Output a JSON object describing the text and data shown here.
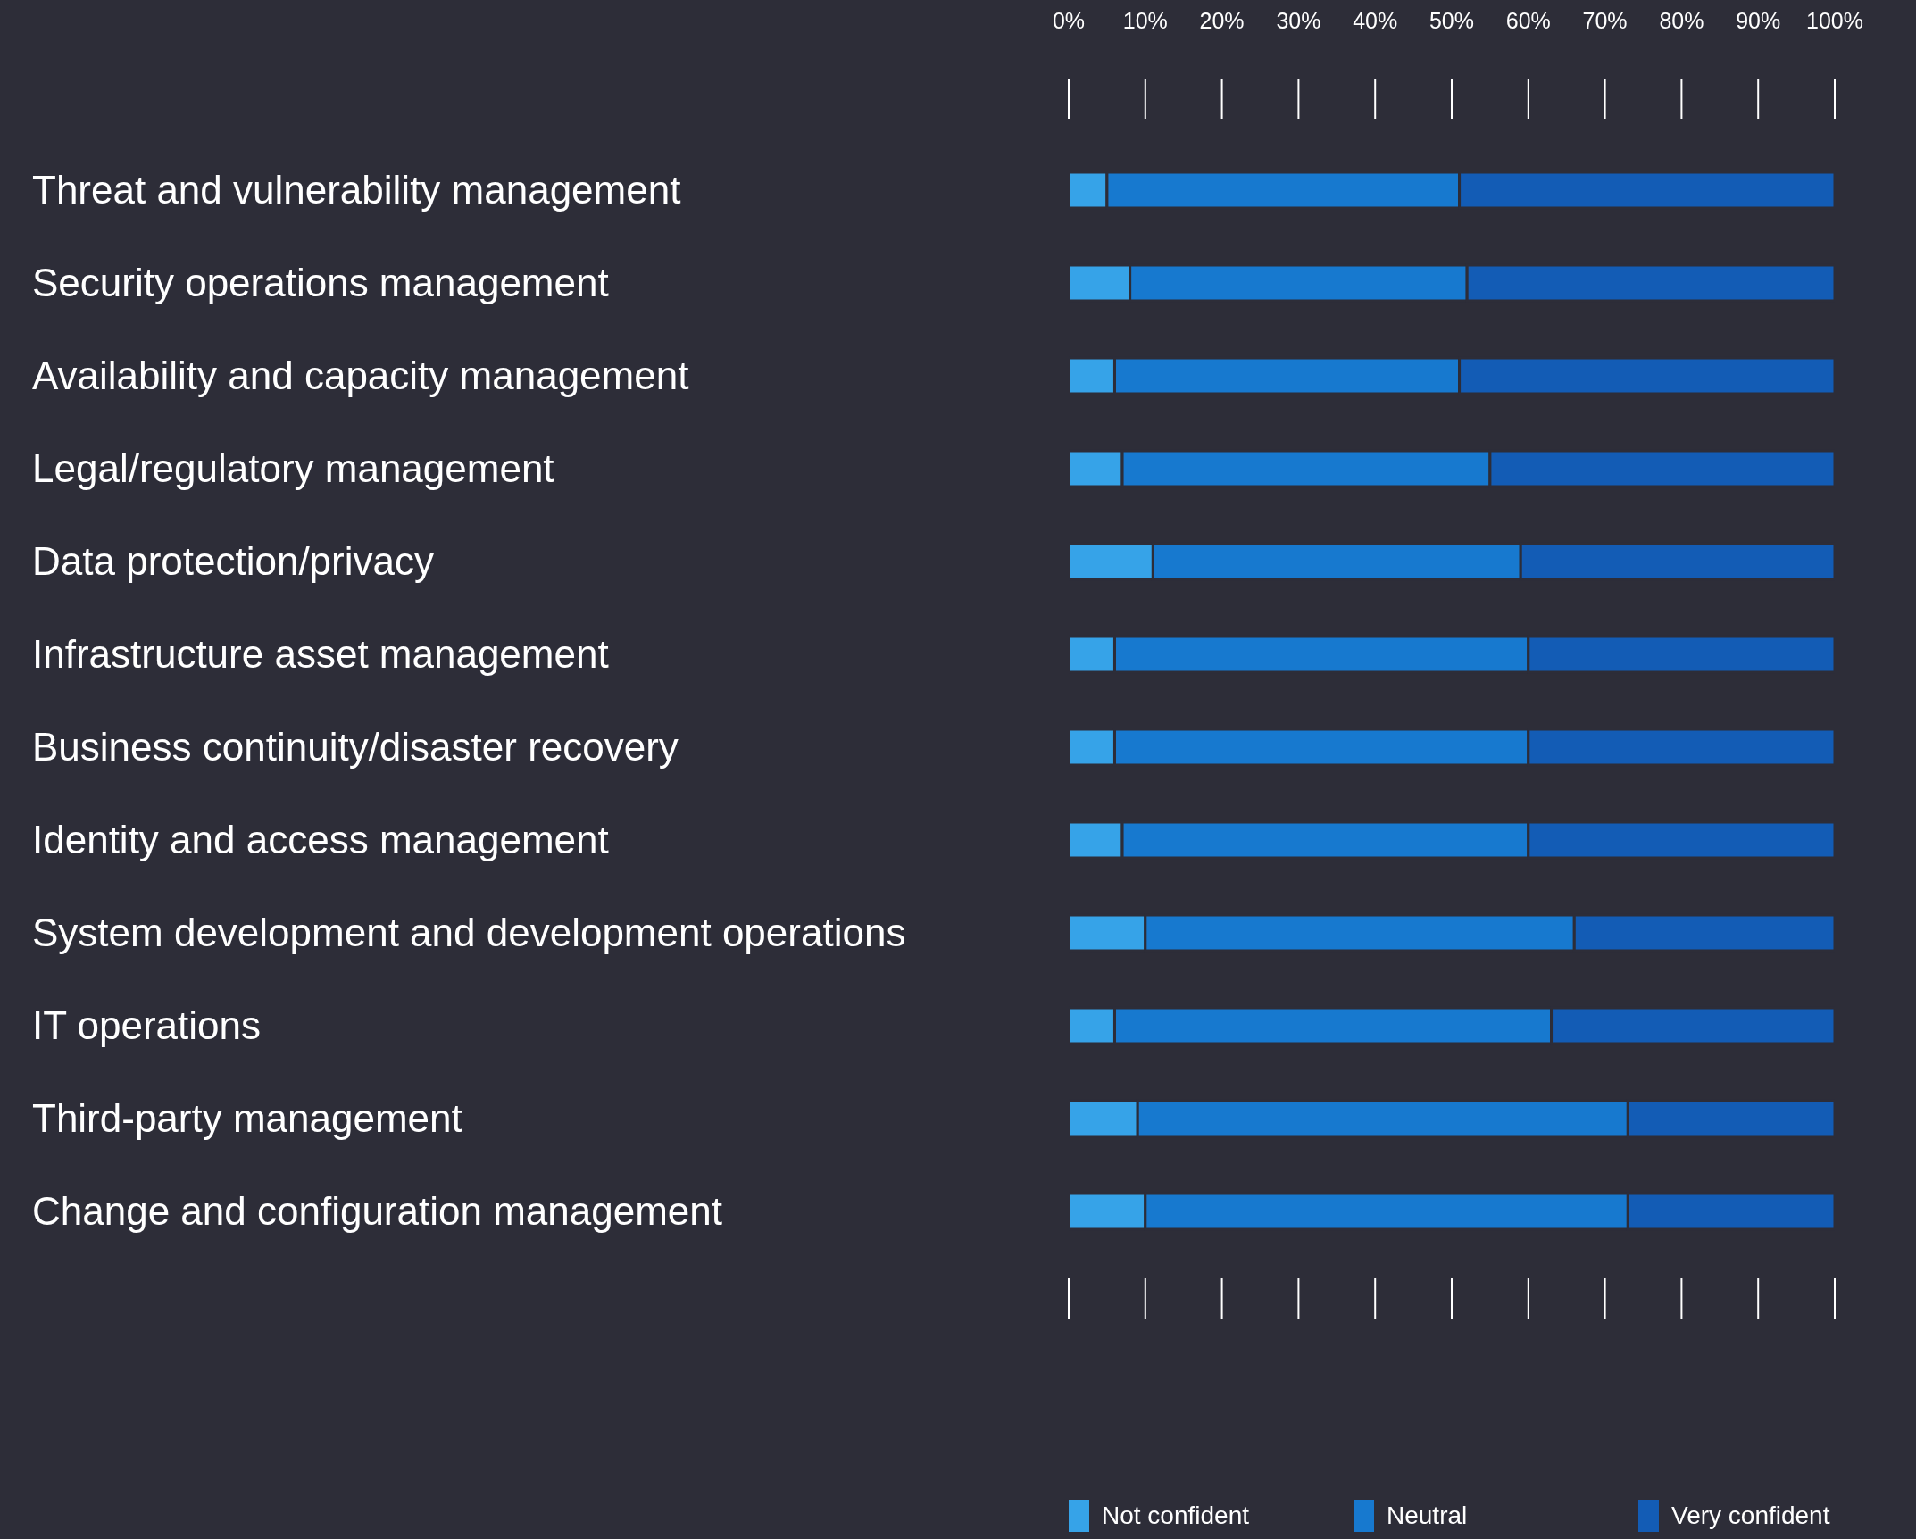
{
  "chart_data": {
    "type": "bar",
    "orientation": "horizontal",
    "stacked": true,
    "categories": [
      "Threat and vulnerability management",
      "Security operations management",
      "Availability and capacity management",
      "Legal/regulatory management",
      "Data protection/privacy",
      "Infrastructure asset management",
      "Business continuity/disaster recovery",
      "Identity and access management",
      "System development and development operations",
      "IT operations",
      "Third-party management",
      "Change and configuration management"
    ],
    "series": [
      {
        "name": "Not confident",
        "color": "#36a3e8",
        "values": [
          5,
          8,
          6,
          7,
          11,
          6,
          6,
          7,
          10,
          6,
          9,
          10
        ]
      },
      {
        "name": "Neutral",
        "color": "#1779cf",
        "values": [
          46,
          44,
          45,
          48,
          48,
          54,
          54,
          53,
          56,
          57,
          64,
          63
        ]
      },
      {
        "name": "Very confident",
        "color": "#135cb5",
        "values": [
          49,
          48,
          49,
          45,
          41,
          40,
          40,
          40,
          34,
          37,
          27,
          27
        ]
      }
    ],
    "xlim": [
      0,
      100
    ],
    "xticks": [
      {
        "value": 0,
        "label": "0%"
      },
      {
        "value": 10,
        "label": "10%"
      },
      {
        "value": 20,
        "label": "20%"
      },
      {
        "value": 30,
        "label": "30%"
      },
      {
        "value": 40,
        "label": "40%"
      },
      {
        "value": 50,
        "label": "50%"
      },
      {
        "value": 60,
        "label": "60%"
      },
      {
        "value": 70,
        "label": "70%"
      },
      {
        "value": 80,
        "label": "80%"
      },
      {
        "value": 90,
        "label": "90%"
      },
      {
        "value": 100,
        "label": "100%"
      }
    ],
    "grid": false,
    "legend": "bottom"
  }
}
